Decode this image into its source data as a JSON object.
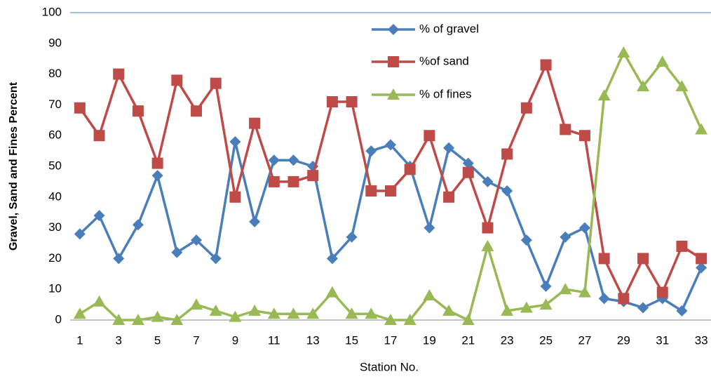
{
  "chart_data": {
    "type": "line",
    "x_label": "Station No.",
    "y_label": "Gravel, Sand and Fines Percent",
    "categories": [
      "1",
      null,
      "3",
      null,
      "5",
      null,
      "7",
      null,
      "9",
      null,
      "11",
      null,
      "13",
      null,
      "15",
      null,
      "17",
      null,
      "19",
      null,
      "21",
      null,
      "23",
      null,
      "25",
      null,
      "27",
      null,
      "29",
      null,
      "31",
      null,
      "33"
    ],
    "series": [
      {
        "name": "% of gravel",
        "color": "#4a7ebb",
        "marker": "diamond",
        "values": [
          28,
          34,
          20,
          31,
          47,
          22,
          26,
          20,
          58,
          32,
          52,
          52,
          50,
          20,
          27,
          55,
          57,
          50,
          30,
          56,
          51,
          45,
          42,
          26,
          11,
          27,
          30,
          7,
          6,
          4,
          7,
          3,
          17
        ]
      },
      {
        "name": "%of sand",
        "color": "#be4b48",
        "marker": "square",
        "values": [
          69,
          60,
          80,
          68,
          51,
          78,
          68,
          77,
          40,
          64,
          45,
          45,
          47,
          71,
          71,
          42,
          42,
          49,
          60,
          40,
          48,
          30,
          54,
          69,
          83,
          62,
          60,
          20,
          7,
          20,
          9,
          24,
          20
        ]
      },
      {
        "name": "% of fines",
        "color": "#98b954",
        "marker": "triangle",
        "values": [
          2,
          6,
          0,
          0,
          1,
          0,
          5,
          3,
          1,
          3,
          2,
          2,
          2,
          9,
          2,
          2,
          0,
          0,
          8,
          3,
          0,
          24,
          3,
          4,
          5,
          10,
          9,
          73,
          87,
          76,
          84,
          76,
          62
        ]
      }
    ],
    "ylim": [
      0,
      100
    ],
    "yticks": [
      0,
      10,
      20,
      30,
      40,
      50,
      60,
      70,
      80,
      90,
      100
    ],
    "grid": false
  }
}
